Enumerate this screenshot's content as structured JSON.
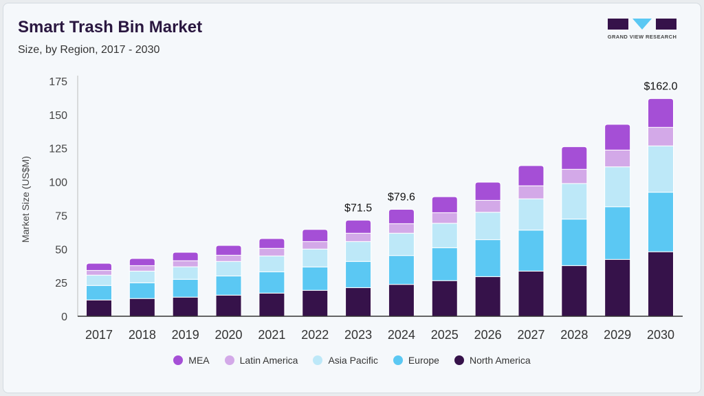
{
  "header": {
    "title": "Smart Trash Bin Market",
    "subtitle": "Size, by Region, 2017 - 2030",
    "logo_text": "GRAND VIEW RESEARCH"
  },
  "colors": {
    "North America": "#36124a",
    "Europe": "#5bc8f3",
    "Asia Pacific": "#bde8f8",
    "Latin America": "#d3a9e8",
    "MEA": "#a54fd6",
    "logo": "#36124a",
    "logo_accent": "#5bc8f3"
  },
  "chart_data": {
    "type": "bar",
    "stacked": true,
    "title": "Smart Trash Bin Market",
    "subtitle": "Size, by Region, 2017 - 2030",
    "xlabel": "",
    "ylabel": "Market Size (US$M)",
    "ylim": [
      0,
      175
    ],
    "yticks": [
      "0",
      "25",
      "50",
      "75",
      "100",
      "125",
      "150",
      "175"
    ],
    "grid": false,
    "legend_position": "bottom",
    "categories": [
      "2017",
      "2018",
      "2019",
      "2020",
      "2021",
      "2022",
      "2023",
      "2024",
      "2025",
      "2026",
      "2027",
      "2028",
      "2029",
      "2030"
    ],
    "series": [
      {
        "name": "North America",
        "values": [
          12.1,
          13.2,
          14.2,
          15.7,
          17.2,
          19.3,
          21.3,
          23.7,
          26.5,
          29.5,
          33.6,
          37.7,
          42.3,
          48.0
        ]
      },
      {
        "name": "Europe",
        "values": [
          10.8,
          11.7,
          13.3,
          14.3,
          15.9,
          17.4,
          19.5,
          21.5,
          24.5,
          27.5,
          30.5,
          34.6,
          39.2,
          44.3
        ]
      },
      {
        "name": "Asia Pacific",
        "values": [
          7.7,
          8.7,
          9.3,
          10.8,
          11.8,
          13.3,
          14.8,
          16.6,
          18.2,
          20.4,
          23.3,
          26.5,
          29.7,
          34.5
        ]
      },
      {
        "name": "Latin America",
        "values": [
          3.5,
          4.1,
          4.5,
          4.6,
          5.6,
          5.6,
          6.2,
          7.1,
          7.9,
          8.9,
          9.7,
          10.6,
          12.5,
          13.8
        ]
      },
      {
        "name": "MEA",
        "values": [
          5.3,
          5.3,
          6.3,
          7.3,
          7.3,
          9.0,
          9.7,
          10.7,
          11.9,
          13.5,
          15.0,
          16.8,
          19.1,
          21.4
        ]
      }
    ],
    "annotations": [
      {
        "category": "2023",
        "text": "$71.5"
      },
      {
        "category": "2024",
        "text": "$79.6"
      },
      {
        "category": "2030",
        "text": "$162.0"
      }
    ],
    "legend": [
      "MEA",
      "Latin America",
      "Asia Pacific",
      "Europe",
      "North America"
    ]
  }
}
